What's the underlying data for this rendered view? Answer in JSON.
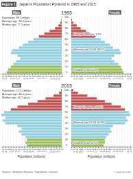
{
  "title": "Japan's Population Pyramid in 1965 and 2015",
  "annotations": [
    "Figure 1",
    "Source: Statistics Bureau, Population Census.",
    "© nippon.com"
  ],
  "chart_data": [
    {
      "type": "bar",
      "orientation": "horizontal",
      "title": "1965",
      "categories": [
        0,
        null,
        10,
        null,
        20,
        null,
        30,
        null,
        40,
        null,
        50,
        null,
        60,
        null,
        70,
        null,
        80,
        null,
        90,
        null,
        100
      ],
      "series": [
        {
          "name": "Male",
          "values": [
            4.1,
            4.0,
            3.8,
            3.6,
            3.4,
            3.1,
            3.3,
            3.8,
            3.7,
            3.2,
            2.9,
            2.5,
            2.1,
            1.7,
            1.3,
            0.9,
            0.5,
            0.25,
            0.1,
            0.03,
            0.01
          ],
          "colors": [
            "#9bbb59",
            "#9bbb59",
            "#9bbb59",
            "#92cddc",
            "#92cddc",
            "#92cddc",
            "#92cddc",
            "#92cddc",
            "#92cddc",
            "#92cddc",
            "#92cddc",
            "#92cddc",
            "#92cddc",
            "#c0504d",
            "#c0504d",
            "#c0504d",
            "#c0504d",
            "#c0504d",
            "#c0504d",
            "#c0504d",
            "#c0504d"
          ]
        },
        {
          "name": "Female",
          "values": [
            3.9,
            3.8,
            3.7,
            3.5,
            3.2,
            3.0,
            3.2,
            3.7,
            3.6,
            3.1,
            2.9,
            2.5,
            2.2,
            1.8,
            1.4,
            1.1,
            0.7,
            0.4,
            0.15,
            0.05,
            0.01
          ],
          "colors": [
            "#9bbb59",
            "#9bbb59",
            "#9bbb59",
            "#92cddc",
            "#92cddc",
            "#92cddc",
            "#92cddc",
            "#92cddc",
            "#92cddc",
            "#92cddc",
            "#92cddc",
            "#92cddc",
            "#92cddc",
            "#c0504d",
            "#c0504d",
            "#c0504d",
            "#c0504d",
            "#c0504d",
            "#c0504d",
            "#c0504d",
            "#c0504d"
          ]
        }
      ],
      "xlim": [
        0,
        4.5
      ],
      "xticks": [
        0,
        0.2,
        0.4,
        0.6,
        0.8,
        1,
        1.2,
        1.4,
        1.6,
        1.8,
        2,
        2.2,
        2.4,
        2.6,
        2.8,
        3,
        3.2,
        3.4,
        3.6,
        3.8,
        4,
        4.2,
        4.4
      ],
      "grid": true,
      "annotations": [
        "Population: 98.3 million",
        "Average age: 30.4 years",
        "Median age: 27.5 years",
        "Elderly 65 and up: 6.3%",
        "Working age 15-64: 68.1%",
        "Children 0-14: 25.6%"
      ]
    },
    {
      "type": "bar",
      "orientation": "horizontal",
      "title": "2015",
      "categories": [
        0,
        null,
        10,
        null,
        20,
        null,
        30,
        null,
        40,
        null,
        50,
        null,
        60,
        null,
        70,
        null,
        80,
        null,
        90,
        null,
        100
      ],
      "series": [
        {
          "name": "Male",
          "values": [
            2.6,
            2.7,
            2.6,
            2.7,
            3.0,
            3.2,
            3.0,
            3.3,
            4.2,
            4.4,
            4.2,
            4.5,
            4.3,
            3.8,
            3.3,
            2.5,
            1.8,
            1.2,
            0.6,
            0.2,
            0.05
          ],
          "colors": [
            "#9bbb59",
            "#9bbb59",
            "#9bbb59",
            "#92cddc",
            "#92cddc",
            "#92cddc",
            "#92cddc",
            "#92cddc",
            "#92cddc",
            "#92cddc",
            "#92cddc",
            "#92cddc",
            "#92cddc",
            "#c0504d",
            "#c0504d",
            "#c0504d",
            "#c0504d",
            "#c0504d",
            "#c0504d",
            "#c0504d",
            "#c0504d"
          ]
        },
        {
          "name": "Female",
          "values": [
            2.4,
            2.5,
            2.5,
            2.6,
            2.8,
            3.0,
            2.9,
            3.1,
            4.0,
            4.2,
            4.1,
            4.4,
            4.3,
            4.0,
            3.7,
            3.0,
            2.5,
            1.9,
            1.2,
            0.5,
            0.15
          ],
          "colors": [
            "#9bbb59",
            "#9bbb59",
            "#9bbb59",
            "#92cddc",
            "#92cddc",
            "#92cddc",
            "#92cddc",
            "#92cddc",
            "#92cddc",
            "#92cddc",
            "#92cddc",
            "#92cddc",
            "#92cddc",
            "#c0504d",
            "#c0504d",
            "#c0504d",
            "#c0504d",
            "#c0504d",
            "#c0504d",
            "#c0504d",
            "#c0504d"
          ]
        }
      ],
      "xlim": [
        0,
        4.5
      ],
      "xticks": [
        0,
        0.2,
        0.4,
        0.6,
        0.8,
        1,
        1.2,
        1.4,
        1.6,
        1.8,
        2,
        2.2,
        2.4,
        2.6,
        2.8,
        3,
        3.2,
        3.4,
        3.6,
        3.8,
        4,
        4.2,
        4.4
      ],
      "grid": true,
      "xlabel": "Population (millions)",
      "annotations": [
        "Population: 127.1 million",
        "Average age: 46.4 years",
        "Median age: 46.7 years",
        "Elderly 65 and up: 26.6%",
        "Working age 15-64: 60.8%",
        "Children 0-14: 12.5%"
      ]
    }
  ]
}
